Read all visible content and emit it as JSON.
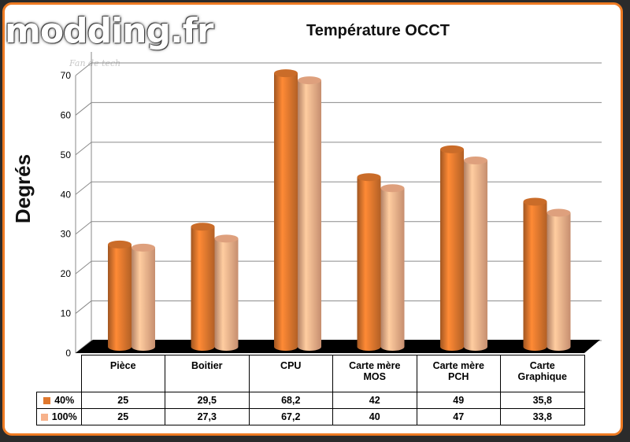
{
  "watermark": {
    "brand": "modding.fr",
    "tagline": "Fan de tech"
  },
  "colors": {
    "frame": "#ee7a22",
    "series": [
      "#e0782e",
      "#f7b28b"
    ],
    "floor": "#000000"
  },
  "chart_data": {
    "type": "bar",
    "title": "Température OCCT",
    "ylabel": "Degrés",
    "xlabel": "",
    "ylim": [
      0,
      70
    ],
    "yticks": [
      0,
      10,
      20,
      30,
      40,
      50,
      60,
      70
    ],
    "grid": true,
    "legend": "data table below chart",
    "categories": [
      "Pièce",
      "Boitier",
      "CPU",
      "Carte mère MOS",
      "Carte mère PCH",
      "Carte Graphique"
    ],
    "category_lines": [
      [
        "Pièce"
      ],
      [
        "Boitier"
      ],
      [
        "CPU"
      ],
      [
        "Carte mère",
        "MOS"
      ],
      [
        "Carte mère",
        "PCH"
      ],
      [
        "Carte",
        "Graphique"
      ]
    ],
    "series": [
      {
        "name": "40%",
        "values": [
          25,
          29.5,
          68.2,
          42,
          49,
          35.8
        ],
        "labels": [
          "25",
          "29,5",
          "68,2",
          "42",
          "49",
          "35,8"
        ]
      },
      {
        "name": "100%",
        "values": [
          25,
          27.3,
          67.2,
          40,
          47,
          33.8
        ],
        "labels": [
          "25",
          "27,3",
          "67,2",
          "40",
          "47",
          "33,8"
        ]
      }
    ]
  }
}
